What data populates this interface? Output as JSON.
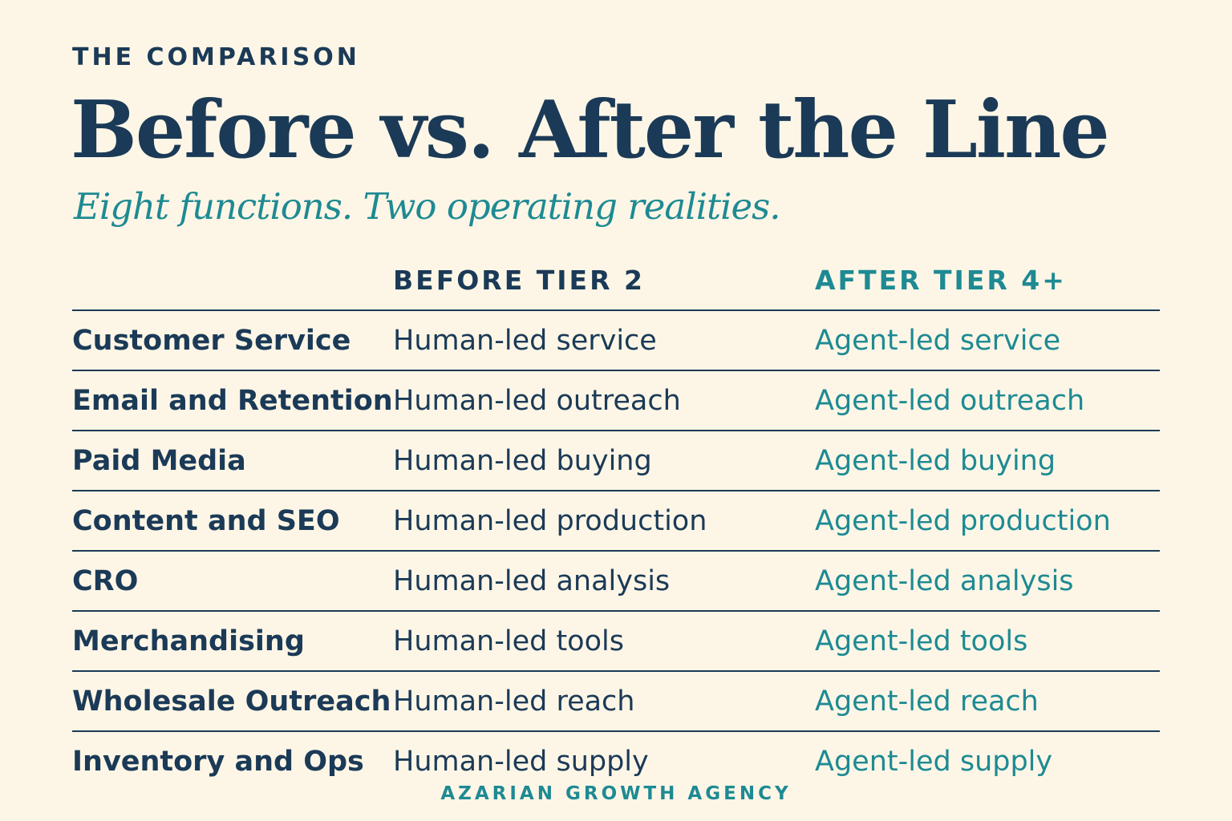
{
  "eyebrow": "THE COMPARISON",
  "title": "Before vs.  After the Line",
  "subtitle": "Eight functions. Two operating realities.",
  "table": {
    "headers": {
      "function": "",
      "before": "BEFORE TIER 2",
      "after": "AFTER TIER 4+"
    },
    "rows": [
      {
        "function": "Customer Service",
        "before": "Human-led service",
        "after": "Agent-led service"
      },
      {
        "function": "Email and Retention",
        "before": "Human-led outreach",
        "after": "Agent-led outreach"
      },
      {
        "function": "Paid Media",
        "before": "Human-led buying",
        "after": "Agent-led buying"
      },
      {
        "function": "Content and SEO",
        "before": "Human-led production",
        "after": "Agent-led production"
      },
      {
        "function": "CRO",
        "before": "Human-led analysis",
        "after": "Agent-led analysis"
      },
      {
        "function": "Merchandising",
        "before": "Human-led tools",
        "after": "Agent-led tools"
      },
      {
        "function": "Wholesale Outreach",
        "before": "Human-led reach",
        "after": "Agent-led reach"
      },
      {
        "function": "Inventory and Ops",
        "before": "Human-led supply",
        "after": "Agent-led supply"
      }
    ]
  },
  "footer": "AZARIAN GROWTH AGENCY",
  "colors": {
    "background": "#fdf6e6",
    "navy": "#1b3a57",
    "teal": "#1e8a93"
  }
}
